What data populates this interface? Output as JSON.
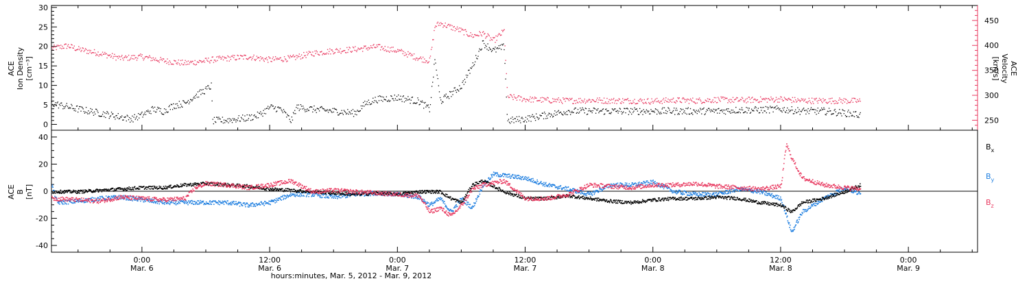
{
  "colors": {
    "density": "#000000",
    "velocity": "#e8385f",
    "bx": "#000000",
    "by": "#1f7fe0",
    "bz": "#e8385f",
    "axis": "#000000"
  },
  "xaxis": {
    "title": "hours:minutes, Mar. 5, 2012 - Mar. 9, 2012",
    "range_hours": [
      -8.5,
      78.5
    ],
    "ticks": [
      {
        "h": 0,
        "time": "0:00",
        "date": "Mar. 6"
      },
      {
        "h": 12,
        "time": "12:00",
        "date": "Mar. 6"
      },
      {
        "h": 24,
        "time": "0:00",
        "date": "Mar. 7"
      },
      {
        "h": 36,
        "time": "12:00",
        "date": "Mar. 7"
      },
      {
        "h": 48,
        "time": "0:00",
        "date": "Mar. 8"
      },
      {
        "h": 60,
        "time": "12:00",
        "date": "Mar. 8"
      },
      {
        "h": 72,
        "time": "0:00",
        "date": "Mar. 9"
      }
    ]
  },
  "chart_data": [
    {
      "type": "scatter",
      "panel": "top",
      "ylabel_left": [
        "ACE",
        "Ion Density",
        "[cm⁻³]"
      ],
      "ylabel_right": [
        "ACE",
        "Velocity",
        "[km/s]"
      ],
      "ylim_left": [
        -1.5,
        30.5
      ],
      "yticks_left": [
        0,
        5,
        10,
        15,
        20,
        25,
        30
      ],
      "ylim_right": [
        230,
        480
      ],
      "yticks_right": [
        250,
        300,
        350,
        400,
        450
      ],
      "x_unit": "hours since 0:00 Mar. 6, 2012",
      "series": [
        {
          "key": "density",
          "axis": "left",
          "x": [
            -8.5,
            -6,
            -4,
            -2,
            -1,
            0,
            1,
            2,
            3,
            4,
            5,
            6,
            6.5,
            6.6,
            8,
            10,
            11,
            12,
            13,
            14,
            14.5,
            16,
            18,
            20,
            21,
            22,
            24,
            26,
            27,
            27.5,
            28,
            30,
            31,
            32,
            33,
            34,
            34.3,
            36,
            38,
            40,
            42,
            44,
            46,
            48,
            50,
            52,
            54,
            56,
            58,
            60,
            62,
            64,
            66,
            67.5
          ],
          "y": [
            5.5,
            4,
            3,
            2,
            1.5,
            2.5,
            4,
            3.5,
            5,
            5.5,
            7.5,
            9,
            10,
            1,
            1.2,
            1.8,
            2.5,
            4.5,
            4,
            1,
            4.5,
            4,
            3.5,
            3,
            5.5,
            6.5,
            7,
            6,
            4,
            17,
            6,
            10,
            15,
            21,
            19,
            20,
            1,
            1.5,
            2.5,
            3.5,
            3.5,
            3.5,
            3.5,
            3.5,
            3.5,
            3.5,
            3.5,
            3.8,
            3.8,
            4,
            3.5,
            3.5,
            3,
            2.5
          ]
        },
        {
          "key": "velocity",
          "axis": "right",
          "x": [
            -8.5,
            -7,
            -6,
            -4,
            -2,
            0,
            2,
            4,
            6,
            6.5,
            8,
            10,
            12,
            14,
            16,
            18,
            20,
            22,
            24,
            26,
            27,
            27.5,
            28,
            30,
            31,
            32,
            33,
            34,
            34.3,
            36,
            38,
            40,
            42,
            44,
            46,
            48,
            50,
            52,
            54,
            56,
            58,
            60,
            62,
            64,
            66,
            67.5
          ],
          "y": [
            395,
            400,
            393,
            385,
            375,
            378,
            370,
            365,
            370,
            372,
            375,
            378,
            372,
            375,
            385,
            390,
            393,
            398,
            390,
            375,
            370,
            440,
            445,
            430,
            420,
            425,
            410,
            430,
            298,
            293,
            291,
            290,
            291,
            290,
            290,
            289,
            291,
            290,
            292,
            291,
            292,
            293,
            290,
            290,
            290,
            289
          ]
        }
      ]
    },
    {
      "type": "scatter",
      "panel": "bottom",
      "ylabel_left": [
        "ACE",
        "B",
        "[nT]"
      ],
      "ylim": [
        -45,
        45
      ],
      "yticks": [
        -40,
        -20,
        0,
        20,
        40
      ],
      "zero_line": true,
      "x_unit": "hours since 0:00 Mar. 6, 2012",
      "series": [
        {
          "key": "bx",
          "name": "B",
          "subscript": "x",
          "x": [
            -8.5,
            -6,
            -4,
            -2,
            0,
            2,
            4,
            6,
            8,
            10,
            12,
            14,
            16,
            18,
            20,
            22,
            24,
            26,
            28,
            29,
            30,
            31,
            32,
            34,
            36,
            38,
            40,
            42,
            44,
            46,
            48,
            50,
            52,
            54,
            56,
            58,
            60,
            61,
            62,
            64,
            66,
            67.5
          ],
          "y": [
            0,
            0,
            1,
            2,
            3,
            3,
            5,
            6,
            5,
            4,
            2,
            1,
            0,
            -1,
            -2,
            -1,
            -2,
            0,
            0,
            -5,
            -8,
            5,
            8,
            0,
            -5,
            -5,
            -3,
            -5,
            -7,
            -8,
            -6,
            -5,
            -5,
            -4,
            -5,
            -8,
            -10,
            -15,
            -8,
            -5,
            0,
            5
          ]
        },
        {
          "key": "by",
          "name": "B",
          "subscript": "y",
          "x": [
            -8.5,
            -8,
            -6,
            -4,
            -2,
            0,
            2,
            4,
            6,
            8,
            10,
            12,
            14,
            16,
            18,
            20,
            22,
            24,
            26,
            27,
            28,
            29,
            30,
            31,
            32,
            33,
            34,
            36,
            38,
            40,
            42,
            44,
            46,
            48,
            50,
            52,
            54,
            56,
            58,
            60,
            61,
            62,
            64,
            66,
            67.5
          ],
          "y": [
            5,
            -8,
            -7,
            -5,
            -4,
            -6,
            -8,
            -8,
            -8,
            -8,
            -10,
            -8,
            -2,
            -2,
            -4,
            -2,
            -1,
            -2,
            -4,
            -10,
            -5,
            -15,
            -5,
            -12,
            5,
            13,
            12,
            10,
            5,
            2,
            -2,
            5,
            5,
            7,
            0,
            -2,
            -2,
            2,
            0,
            -5,
            -30,
            -15,
            -5,
            3,
            -2
          ]
        },
        {
          "key": "bz",
          "name": "B",
          "subscript": "z",
          "x": [
            -8.5,
            -6,
            -4,
            -2,
            0,
            2,
            4,
            5,
            6,
            8,
            10,
            12,
            14,
            16,
            18,
            20,
            22,
            24,
            26,
            27,
            28,
            29,
            30,
            31,
            32,
            34,
            36,
            38,
            40,
            42,
            44,
            46,
            48,
            50,
            52,
            54,
            56,
            58,
            60,
            60.5,
            61,
            62,
            64,
            66,
            67.5
          ],
          "y": [
            -5,
            -6,
            -7,
            -4,
            -5,
            -6,
            -5,
            3,
            6,
            5,
            3,
            5,
            8,
            0,
            1,
            0,
            -1,
            -2,
            -3,
            -15,
            -12,
            -18,
            -10,
            2,
            5,
            8,
            -5,
            -5,
            -2,
            5,
            4,
            3,
            5,
            5,
            6,
            4,
            3,
            2,
            4,
            35,
            25,
            10,
            5,
            3,
            2
          ]
        }
      ]
    }
  ]
}
